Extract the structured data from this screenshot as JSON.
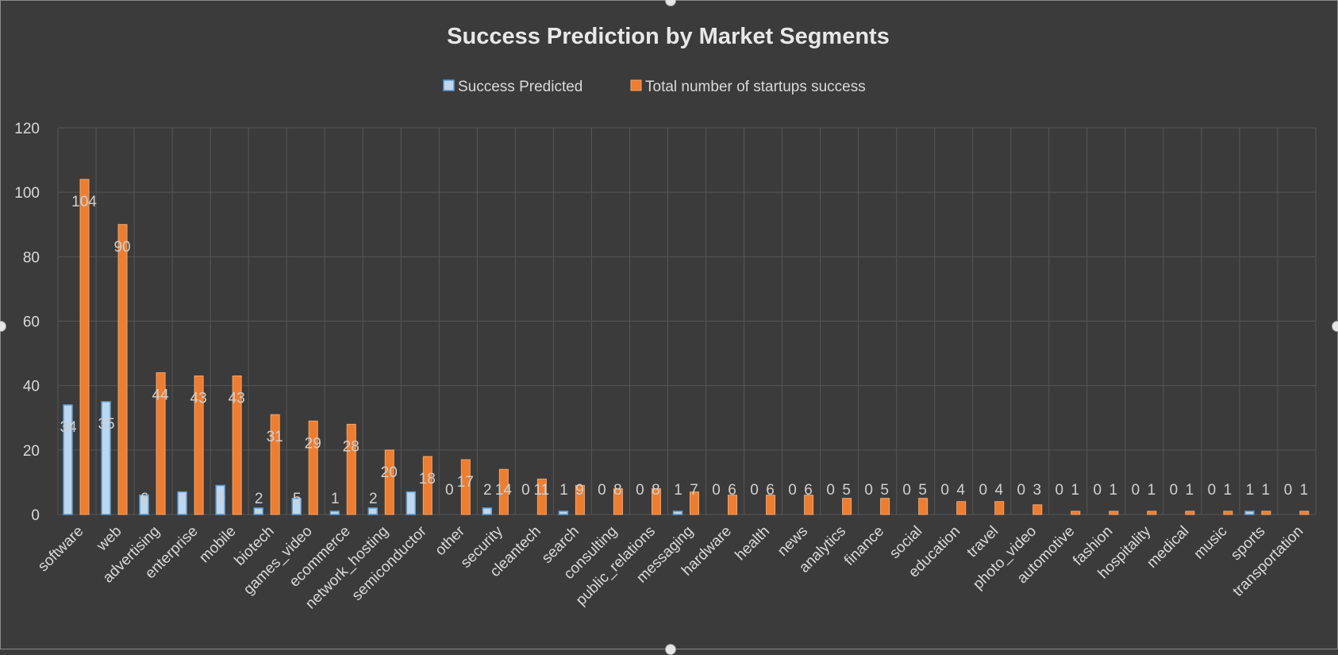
{
  "chart_data": {
    "type": "bar",
    "title": "Success Prediction by Market Segments",
    "xlabel": "",
    "ylabel": "",
    "ylim": [
      0,
      120
    ],
    "yticks": [
      "0",
      "20",
      "40",
      "60",
      "80",
      "100",
      "120"
    ],
    "grid": true,
    "legend_position": "top",
    "categories": [
      "software",
      "web",
      "advertising",
      "enterprise",
      "mobile",
      "biotech",
      "games_video",
      "ecommerce",
      "network_hosting",
      "semiconductor",
      "other",
      "security",
      "cleantech",
      "search",
      "consulting",
      "public_relations",
      "messaging",
      "hardware",
      "health",
      "news",
      "analytics",
      "finance",
      "social",
      "education",
      "travel",
      "photo_video",
      "automotive",
      "fashion",
      "hospitality",
      "medical",
      "music",
      "sports",
      "transportation"
    ],
    "series": [
      {
        "name": "Success Predicted",
        "color": "#bdd7ee",
        "values": [
          34,
          35,
          6,
          7,
          9,
          2,
          5,
          1,
          2,
          7,
          0,
          2,
          0,
          1,
          0,
          0,
          1,
          0,
          0,
          0,
          0,
          0,
          0,
          0,
          0,
          0,
          0,
          0,
          0,
          0,
          0,
          1,
          0
        ],
        "labels": [
          "34",
          "35",
          "6",
          "7",
          "9",
          "2",
          "5",
          "1",
          "2",
          "",
          "0",
          "2",
          "0",
          "1",
          "0",
          "0",
          "1",
          "0",
          "0",
          "0",
          "0",
          "0",
          "0",
          "0",
          "0",
          "0",
          "0",
          "0",
          "0",
          "0",
          "0",
          "1",
          "0"
        ]
      },
      {
        "name": "Total number of startups success",
        "color": "#ed7d31",
        "values": [
          104,
          90,
          44,
          43,
          43,
          31,
          29,
          28,
          20,
          18,
          17,
          14,
          11,
          9,
          8,
          8,
          7,
          6,
          6,
          6,
          5,
          5,
          5,
          4,
          4,
          3,
          1,
          1,
          1,
          1,
          1,
          1,
          1
        ],
        "labels": [
          "104",
          "90",
          "44",
          "43",
          "43",
          "31",
          "29",
          "28",
          "20",
          "18",
          "17",
          "14",
          "11",
          "9",
          "8",
          "8",
          "7",
          "6",
          "6",
          "6",
          "5",
          "5",
          "5",
          "4",
          "4",
          "3",
          "1",
          "1",
          "1",
          "1",
          "1",
          "1",
          "1"
        ]
      }
    ]
  }
}
